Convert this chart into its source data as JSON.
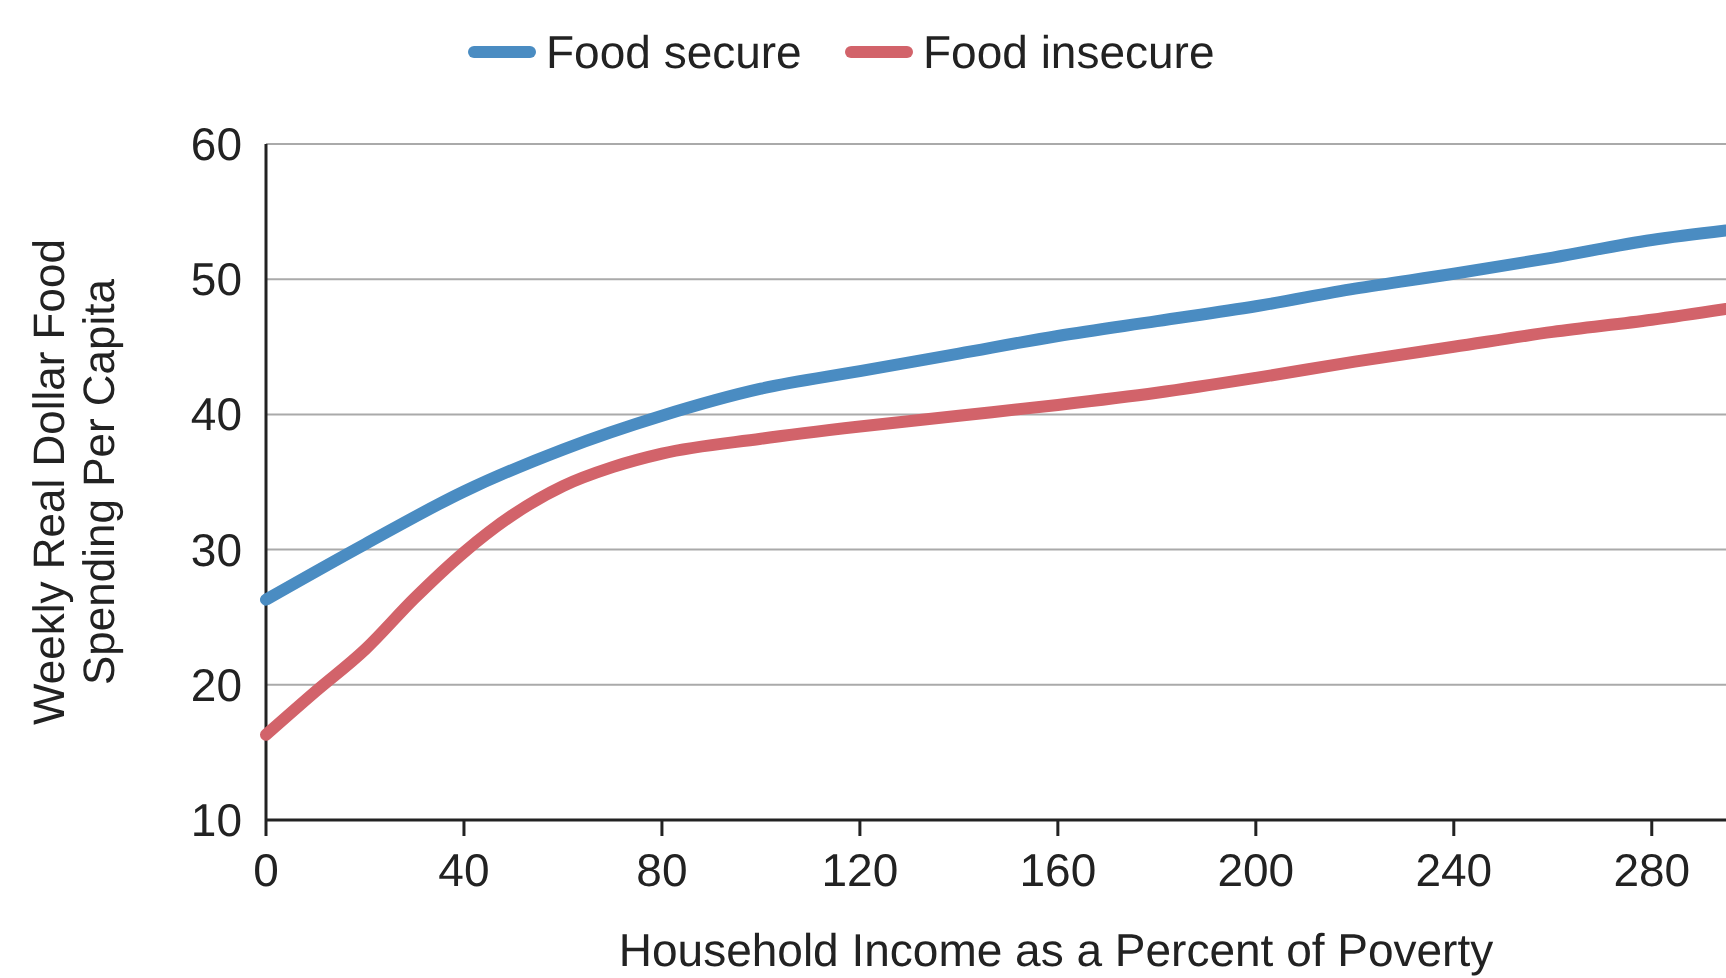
{
  "chart_data": {
    "type": "line",
    "xlabel": "Household Income as a Percent of Poverty",
    "ylabel": "Weekly Real Dollar Food Spending Per Capita",
    "xlim": [
      0,
      295
    ],
    "ylim": [
      10,
      60
    ],
    "xticks": [
      0,
      40,
      80,
      120,
      160,
      200,
      240,
      280
    ],
    "yticks": [
      10,
      20,
      30,
      40,
      50,
      60
    ],
    "grid": "y",
    "legend": "top",
    "line_style": "solid",
    "marker": "none",
    "series": [
      {
        "name": "Food secure",
        "color": "#4a8cc2",
        "x": [
          0,
          20,
          40,
          60,
          80,
          100,
          120,
          140,
          160,
          180,
          200,
          220,
          240,
          260,
          280,
          295
        ],
        "values": [
          26.3,
          30.4,
          34.3,
          37.4,
          39.9,
          41.9,
          43.2,
          44.5,
          45.8,
          46.9,
          48.0,
          49.3,
          50.4,
          51.6,
          52.9,
          53.6
        ]
      },
      {
        "name": "Food insecure",
        "color": "#d2636a",
        "x": [
          0,
          10,
          20,
          30,
          40,
          50,
          60,
          70,
          80,
          100,
          120,
          140,
          160,
          180,
          200,
          220,
          240,
          260,
          280,
          295
        ],
        "values": [
          16.3,
          19.5,
          22.6,
          26.4,
          29.8,
          32.6,
          34.7,
          36.1,
          37.1,
          38.2,
          39.1,
          39.9,
          40.7,
          41.6,
          42.7,
          43.9,
          45.0,
          46.1,
          47.0,
          47.8
        ]
      }
    ]
  }
}
